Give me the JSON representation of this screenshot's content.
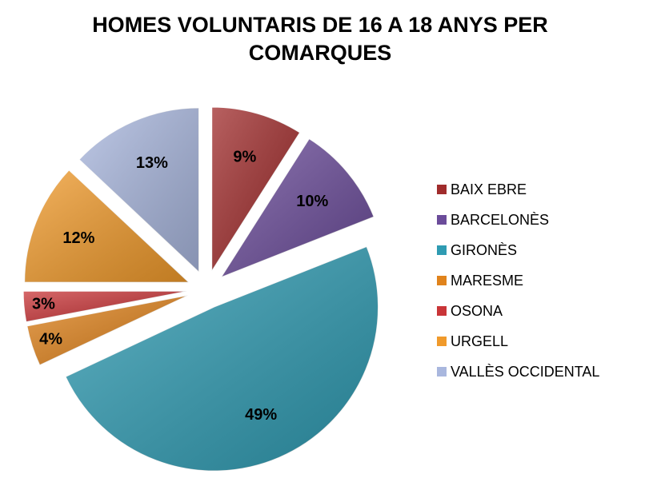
{
  "chart_data": {
    "type": "pie",
    "title": "HOMES VOLUNTARIS DE 16 A 18 ANYS PER COMARQUES",
    "categories": [
      "BAIX EBRE",
      "BARCELONÈS",
      "GIRONÈS",
      "MARESME",
      "OSONA",
      "URGELL",
      "VALLÈS OCCIDENTAL"
    ],
    "values": [
      9,
      10,
      49,
      4,
      3,
      12,
      13
    ],
    "value_labels": [
      "9%",
      "10%",
      "49%",
      "4%",
      "3%",
      "12%",
      "13%"
    ],
    "colors": [
      "#a02c2c",
      "#6b4c9a",
      "#2f9bb2",
      "#e0831c",
      "#c93538",
      "#f09a2b",
      "#a9b7de"
    ],
    "legend": "right"
  }
}
